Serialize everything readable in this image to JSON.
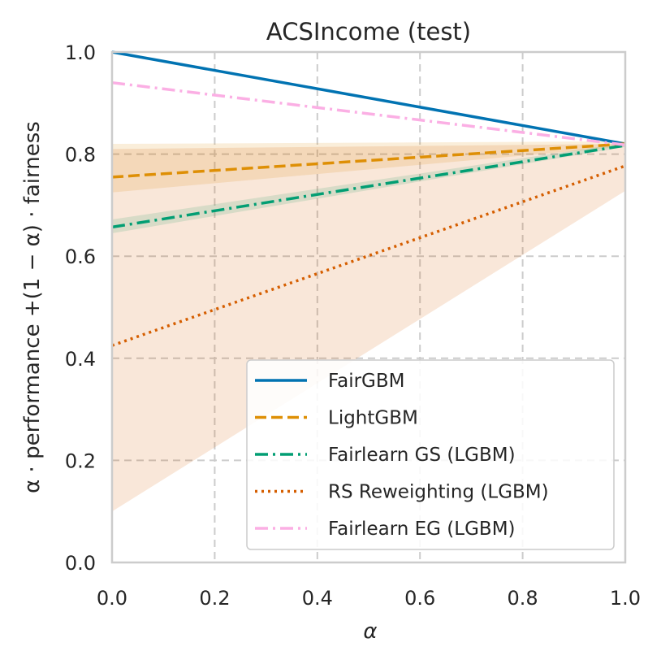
{
  "chart_data": {
    "type": "line",
    "title": "ACSIncome (test)",
    "xlabel": "α",
    "ylabel": "α · performance +(1 − α) · fairness",
    "xlim": [
      0.0,
      1.0
    ],
    "ylim": [
      0.0,
      1.0
    ],
    "xticks": [
      "0.0",
      "0.2",
      "0.4",
      "0.6",
      "0.8",
      "1.0"
    ],
    "yticks": [
      "0.0",
      "0.2",
      "0.4",
      "0.6",
      "0.8",
      "1.0"
    ],
    "grid": true,
    "legend_position": "bottom-right",
    "series": [
      {
        "name": "FairGBM",
        "x": [
          0.0,
          1.0
        ],
        "y": [
          1.0,
          0.82
        ],
        "band": null,
        "color": "#0173b2",
        "style": "solid"
      },
      {
        "name": "LightGBM",
        "x": [
          0.0,
          1.0
        ],
        "y": [
          0.755,
          0.82
        ],
        "band": {
          "lower": [
            0.725,
            0.815
          ],
          "upper": [
            0.82,
            0.825
          ]
        },
        "color": "#de8f05",
        "style": "dashed"
      },
      {
        "name": "Fairlearn GS (LGBM)",
        "x": [
          0.0,
          1.0
        ],
        "y": [
          0.657,
          0.817
        ],
        "band": {
          "lower": [
            0.645,
            0.814
          ],
          "upper": [
            0.672,
            0.822
          ]
        },
        "color": "#029e73",
        "style": "dashdot"
      },
      {
        "name": "RS Reweighting (LGBM)",
        "x": [
          0.0,
          1.0
        ],
        "y": [
          0.425,
          0.777
        ],
        "band": {
          "lower": [
            0.1,
            0.728
          ],
          "upper": [
            0.81,
            0.82
          ]
        },
        "color": "#d55e00",
        "style": "dotted"
      },
      {
        "name": "Fairlearn EG (LGBM)",
        "x": [
          0.0,
          1.0
        ],
        "y": [
          0.94,
          0.818
        ],
        "band": null,
        "color": "#fbafe4",
        "style": "dashdot"
      }
    ]
  }
}
